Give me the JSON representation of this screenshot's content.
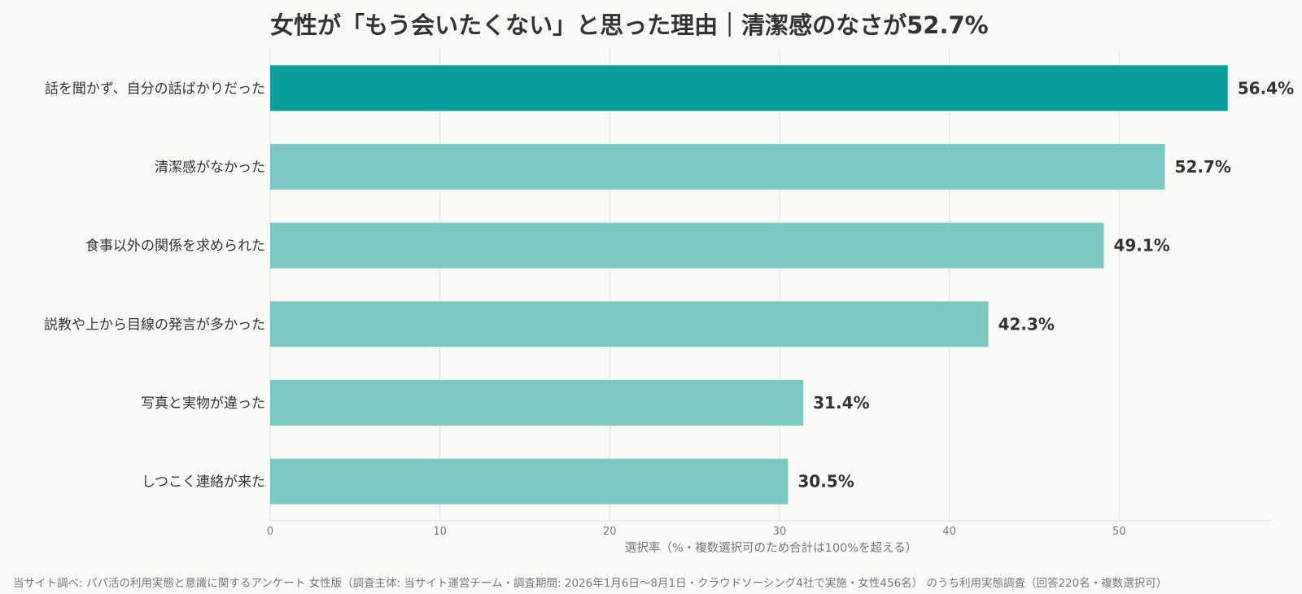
{
  "chart_data": {
    "type": "bar",
    "orientation": "horizontal",
    "title": "女性が「もう会いたくない」と思った理由｜清潔感のなさが52.7%",
    "xlabel": "選択率（%・複数選択可のため合計は100%を超える）",
    "ylabel": "",
    "xlim": [
      0,
      59
    ],
    "xticks": [
      0,
      10,
      20,
      30,
      40,
      50
    ],
    "grid": "vertical",
    "categories": [
      "話を聞かず、自分の話ばかりだった",
      "清潔感がなかった",
      "食事以外の関係を求められた",
      "説教や上から目線の発言が多かった",
      "写真と実物が違った",
      "しつこく連絡が来た"
    ],
    "values": [
      56.4,
      52.7,
      49.1,
      42.3,
      31.4,
      30.5
    ],
    "value_labels": [
      "56.4%",
      "52.7%",
      "49.1%",
      "42.3%",
      "31.4%",
      "30.5%"
    ],
    "highlight_index": 0
  },
  "colors": {
    "highlight": "#0a9e9a",
    "bar": "#7ec8c4",
    "grid": "#e3e3e3",
    "background": "#fafaf8"
  },
  "source": "当サイト調べ: パパ活の利用実態と意識に関するアンケート 女性版（調査主体: 当サイト運営チーム・調査期間: 2026年1月6日〜8月1日・クラウドソーシング4社で実施・女性456名） のうち利用実態調査（回答220名・複数選択可）"
}
